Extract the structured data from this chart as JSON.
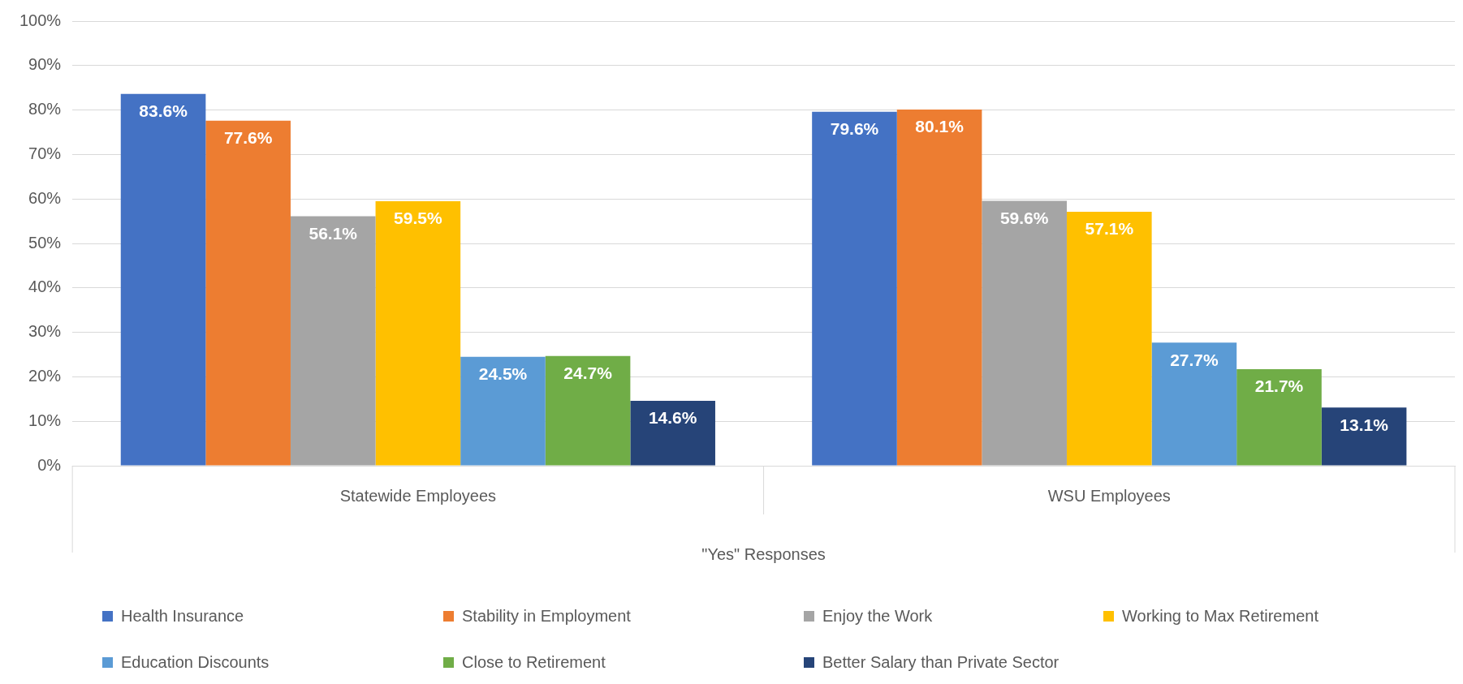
{
  "chart_data": {
    "type": "bar",
    "xlabel": "\"Yes\" Responses",
    "categories": [
      "Statewide Employees",
      "WSU Employees"
    ],
    "series": [
      {
        "name": "Health Insurance",
        "color": "#4472c4",
        "values": [
          83.6,
          79.6
        ],
        "value_labels": [
          "83.6%",
          "79.6%"
        ]
      },
      {
        "name": "Stability in Employment",
        "color": "#ed7d31",
        "values": [
          77.6,
          80.1
        ],
        "value_labels": [
          "77.6%",
          "80.1%"
        ]
      },
      {
        "name": "Enjoy the Work",
        "color": "#a5a5a5",
        "values": [
          56.1,
          59.6
        ],
        "value_labels": [
          "56.1%",
          "59.6%"
        ]
      },
      {
        "name": "Working to Max Retirement",
        "color": "#ffc000",
        "values": [
          59.5,
          57.1
        ],
        "value_labels": [
          "59.5%",
          "57.1%"
        ]
      },
      {
        "name": "Education Discounts",
        "color": "#5b9bd5",
        "values": [
          24.5,
          27.7
        ],
        "value_labels": [
          "24.5%",
          "27.7%"
        ]
      },
      {
        "name": "Close to Retirement",
        "color": "#70ad47",
        "values": [
          24.7,
          21.7
        ],
        "value_labels": [
          "24.7%",
          "21.7%"
        ]
      },
      {
        "name": "Better Salary than Private Sector",
        "color": "#264478",
        "values": [
          14.6,
          13.1
        ],
        "value_labels": [
          "14.6%",
          "13.1%"
        ]
      }
    ],
    "ylim": [
      0,
      100
    ],
    "yticks": [
      {
        "value": 0,
        "label": "0%"
      },
      {
        "value": 10,
        "label": "10%"
      },
      {
        "value": 20,
        "label": "20%"
      },
      {
        "value": 30,
        "label": "30%"
      },
      {
        "value": 40,
        "label": "40%"
      },
      {
        "value": 50,
        "label": "50%"
      },
      {
        "value": 60,
        "label": "60%"
      },
      {
        "value": 70,
        "label": "70%"
      },
      {
        "value": 80,
        "label": "80%"
      },
      {
        "value": 90,
        "label": "90%"
      },
      {
        "value": 100,
        "label": "100%"
      }
    ],
    "grid": "y",
    "legend": "bottom"
  }
}
